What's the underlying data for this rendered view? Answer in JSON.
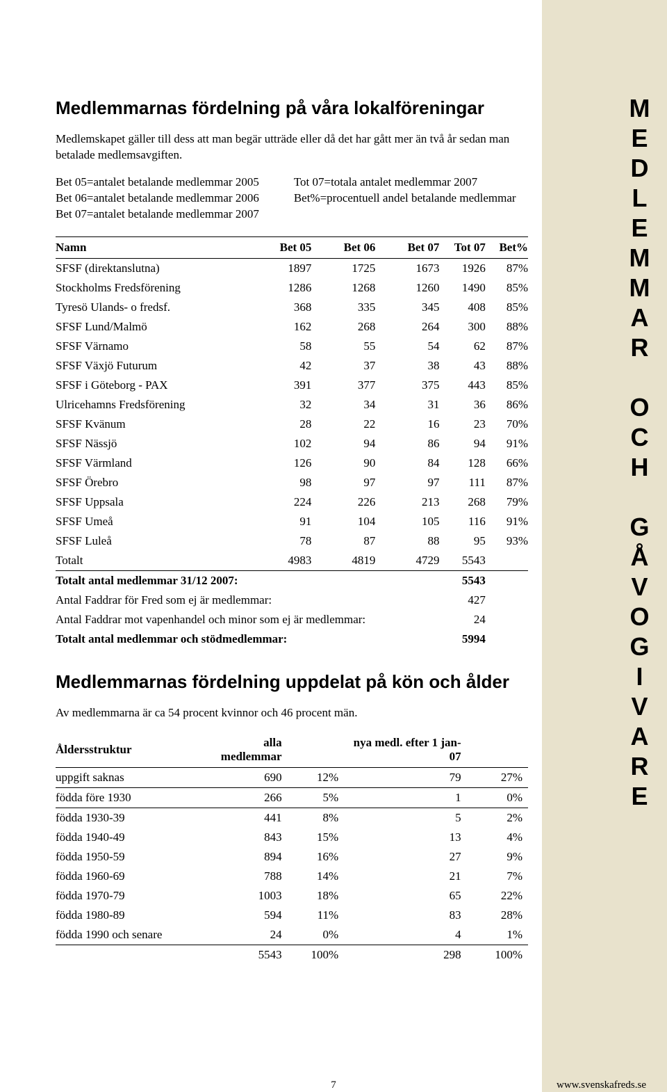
{
  "sidebar": {
    "title": "MEDLEMMAR OCH GÅVOGIVARE",
    "bg_color": "#e8e2cc"
  },
  "heading1": "Medlemmarnas fördelning på våra lokalföreningar",
  "intro": "Medlemskapet gäller till dess att man begär utträde eller då det har gått mer än två år sedan man betalade medlemsavgiften.",
  "legend": {
    "left": [
      "Bet 05=antalet betalande medlemmar 2005",
      "Bet 06=antalet betalande medlemmar 2006",
      "Bet 07=antalet betalande medlemmar 2007"
    ],
    "right": [
      "Tot 07=totala antalet medlemmar 2007",
      "Bet%=procentuell andel betalande medlemmar"
    ]
  },
  "table1": {
    "columns": [
      "Namn",
      "Bet 05",
      "Bet 06",
      "Bet 07",
      "Tot 07",
      "Bet%"
    ],
    "rows": [
      [
        "SFSF (direktanslutna)",
        "1897",
        "1725",
        "1673",
        "1926",
        "87%"
      ],
      [
        "Stockholms Fredsförening",
        "1286",
        "1268",
        "1260",
        "1490",
        "85%"
      ],
      [
        "Tyresö Ulands- o fredsf.",
        "368",
        "335",
        "345",
        "408",
        "85%"
      ],
      [
        "SFSF Lund/Malmö",
        "162",
        "268",
        "264",
        "300",
        "88%"
      ],
      [
        "SFSF Värnamo",
        "58",
        "55",
        "54",
        "62",
        "87%"
      ],
      [
        "SFSF Växjö Futurum",
        "42",
        "37",
        "38",
        "43",
        "88%"
      ],
      [
        "SFSF i Göteborg - PAX",
        "391",
        "377",
        "375",
        "443",
        "85%"
      ],
      [
        "Ulricehamns Fredsförening",
        "32",
        "34",
        "31",
        "36",
        "86%"
      ],
      [
        "SFSF Kvänum",
        "28",
        "22",
        "16",
        "23",
        "70%"
      ],
      [
        "SFSF Nässjö",
        "102",
        "94",
        "86",
        "94",
        "91%"
      ],
      [
        "SFSF Värmland",
        "126",
        "90",
        "84",
        "128",
        "66%"
      ],
      [
        "SFSF Örebro",
        "98",
        "97",
        "97",
        "111",
        "87%"
      ],
      [
        "SFSF Uppsala",
        "224",
        "226",
        "213",
        "268",
        "79%"
      ],
      [
        "SFSF Umeå",
        "91",
        "104",
        "105",
        "116",
        "91%"
      ],
      [
        "SFSF Luleå",
        "78",
        "87",
        "88",
        "95",
        "93%"
      ],
      [
        "Totalt",
        "4983",
        "4819",
        "4729",
        "5543",
        ""
      ]
    ],
    "summary": [
      {
        "label": "Totalt antal medlemmar 31/12 2007:",
        "value": "5543",
        "bold": true
      },
      {
        "label": "Antal Faddrar för Fred som ej är medlemmar:",
        "value": "427",
        "bold": false
      },
      {
        "label": "Antal Faddrar mot vapenhandel och minor som ej är medlemmar:",
        "value": "24",
        "bold": false
      },
      {
        "label": "Totalt antal medlemmar och stödmedlemmar:",
        "value": "5994",
        "bold": true
      }
    ]
  },
  "heading2": "Medlemmarnas fördelning uppdelat på kön och ålder",
  "gender_text": "Av medlemmarna är ca 54 procent kvinnor och 46 procent män.",
  "table2": {
    "columns": [
      "Åldersstruktur",
      "alla medlemmar",
      "",
      "nya medl. efter 1 jan-07",
      ""
    ],
    "rows": [
      [
        "uppgift saknas",
        "690",
        "12%",
        "79",
        "27%"
      ],
      [
        "födda före 1930",
        "266",
        "5%",
        "1",
        "0%"
      ],
      [
        "födda 1930-39",
        "441",
        "8%",
        "5",
        "2%"
      ],
      [
        "födda 1940-49",
        "843",
        "15%",
        "13",
        "4%"
      ],
      [
        "födda 1950-59",
        "894",
        "16%",
        "27",
        "9%"
      ],
      [
        "födda 1960-69",
        "788",
        "14%",
        "21",
        "7%"
      ],
      [
        "födda 1970-79",
        "1003",
        "18%",
        "65",
        "22%"
      ],
      [
        "födda 1980-89",
        "594",
        "11%",
        "83",
        "28%"
      ],
      [
        "födda 1990 och senare",
        "24",
        "0%",
        "4",
        "1%"
      ],
      [
        "",
        "5543",
        "100%",
        "298",
        "100%"
      ]
    ]
  },
  "footer": {
    "page": "7",
    "url": "www.svenskafreds.se"
  }
}
